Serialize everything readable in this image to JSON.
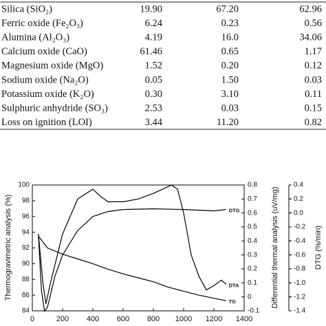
{
  "table": {
    "rows": [
      [
        "Silica (SiO₂)",
        "19.90",
        "67.20",
        "62.96"
      ],
      [
        "Ferric oxide (Fe₂O₃)",
        "6.24",
        "0.23",
        "0.56"
      ],
      [
        "Alumina (Al₂O₃)",
        "4.19",
        "16.0",
        "34.06"
      ],
      [
        "Calcium oxide (CaO)",
        "61.46",
        "0.65",
        "1.17"
      ],
      [
        "Magnesium oxide (MgO)",
        "1.52",
        "0.20",
        "0.12"
      ],
      [
        "Sodium oxide (Na₂O)",
        "0.05",
        "1.50",
        "0.03"
      ],
      [
        "Potassium oxide (K₂O)",
        "0.30",
        "3.10",
        "0.11"
      ],
      [
        "Sulphuric anhydride (SO₃)",
        "2.53",
        "0.03",
        "0.15"
      ],
      [
        "Loss on ignition (LOI)",
        "3.44",
        "11.20",
        "0.82"
      ]
    ]
  },
  "chart_data": {
    "type": "line",
    "y_label": "Thermogravimetric analysis (%)",
    "y2_label": "Differential thermal analysis (uV/mg)",
    "y3_label": "DTG (%/min)",
    "xlim": [
      0,
      1400
    ],
    "xticks": [
      0,
      200,
      400,
      600,
      800,
      1000,
      1200,
      1400
    ],
    "ylim": [
      84,
      100
    ],
    "yticks": [
      84,
      86,
      88,
      90,
      92,
      94,
      96,
      98,
      100
    ],
    "y2lim": [
      -0.1,
      0.8
    ],
    "y2ticks": [
      -0.1,
      0,
      0.1,
      0.2,
      0.3,
      0.4,
      0.5,
      0.6,
      0.7,
      0.8
    ],
    "y3lim": [
      -1.4,
      0.4
    ],
    "y3ticks": [
      -1.4,
      -1.2,
      {
        "value": -1,
        "label": "-1.0"
      },
      -0.8,
      -0.6,
      -0.4,
      -0.2,
      {
        "value": 0,
        "label": "0.0"
      },
      0.2,
      0.4
    ],
    "series": [
      {
        "name": "TG",
        "color": "#000000",
        "axis": "y",
        "x": [
          40,
          100,
          200,
          300,
          400,
          500,
          600,
          700,
          800,
          900,
          1000,
          1100,
          1200,
          1280
        ],
        "values": [
          93.5,
          92.0,
          91.2,
          90.6,
          90.0,
          89.3,
          88.7,
          88.2,
          87.7,
          87.0,
          86.5,
          86.0,
          85.6,
          85.3
        ]
      },
      {
        "name": "DTA",
        "color": "#000000",
        "axis": "y2",
        "x": [
          40,
          70,
          90,
          120,
          200,
          300,
          400,
          450,
          500,
          600,
          700,
          800,
          880,
          920,
          960,
          1000,
          1050,
          1100,
          1150,
          1200,
          1250,
          1280
        ],
        "values": [
          0.45,
          0.1,
          -0.05,
          0.1,
          0.45,
          0.7,
          0.77,
          0.72,
          0.68,
          0.68,
          0.7,
          0.74,
          0.78,
          0.8,
          0.77,
          0.6,
          0.3,
          0.15,
          0.05,
          0.08,
          0.12,
          0.09
        ]
      },
      {
        "name": "DTG",
        "color": "#000000",
        "axis": "y3",
        "x": [
          40,
          60,
          80,
          100,
          150,
          200,
          300,
          400,
          500,
          600,
          800,
          1000,
          1200,
          1280
        ],
        "values": [
          -0.3,
          -1.1,
          -1.4,
          -1.35,
          -0.9,
          -0.6,
          -0.25,
          -0.05,
          0.02,
          0.05,
          0.06,
          0.05,
          0.03,
          0.05
        ]
      }
    ]
  }
}
